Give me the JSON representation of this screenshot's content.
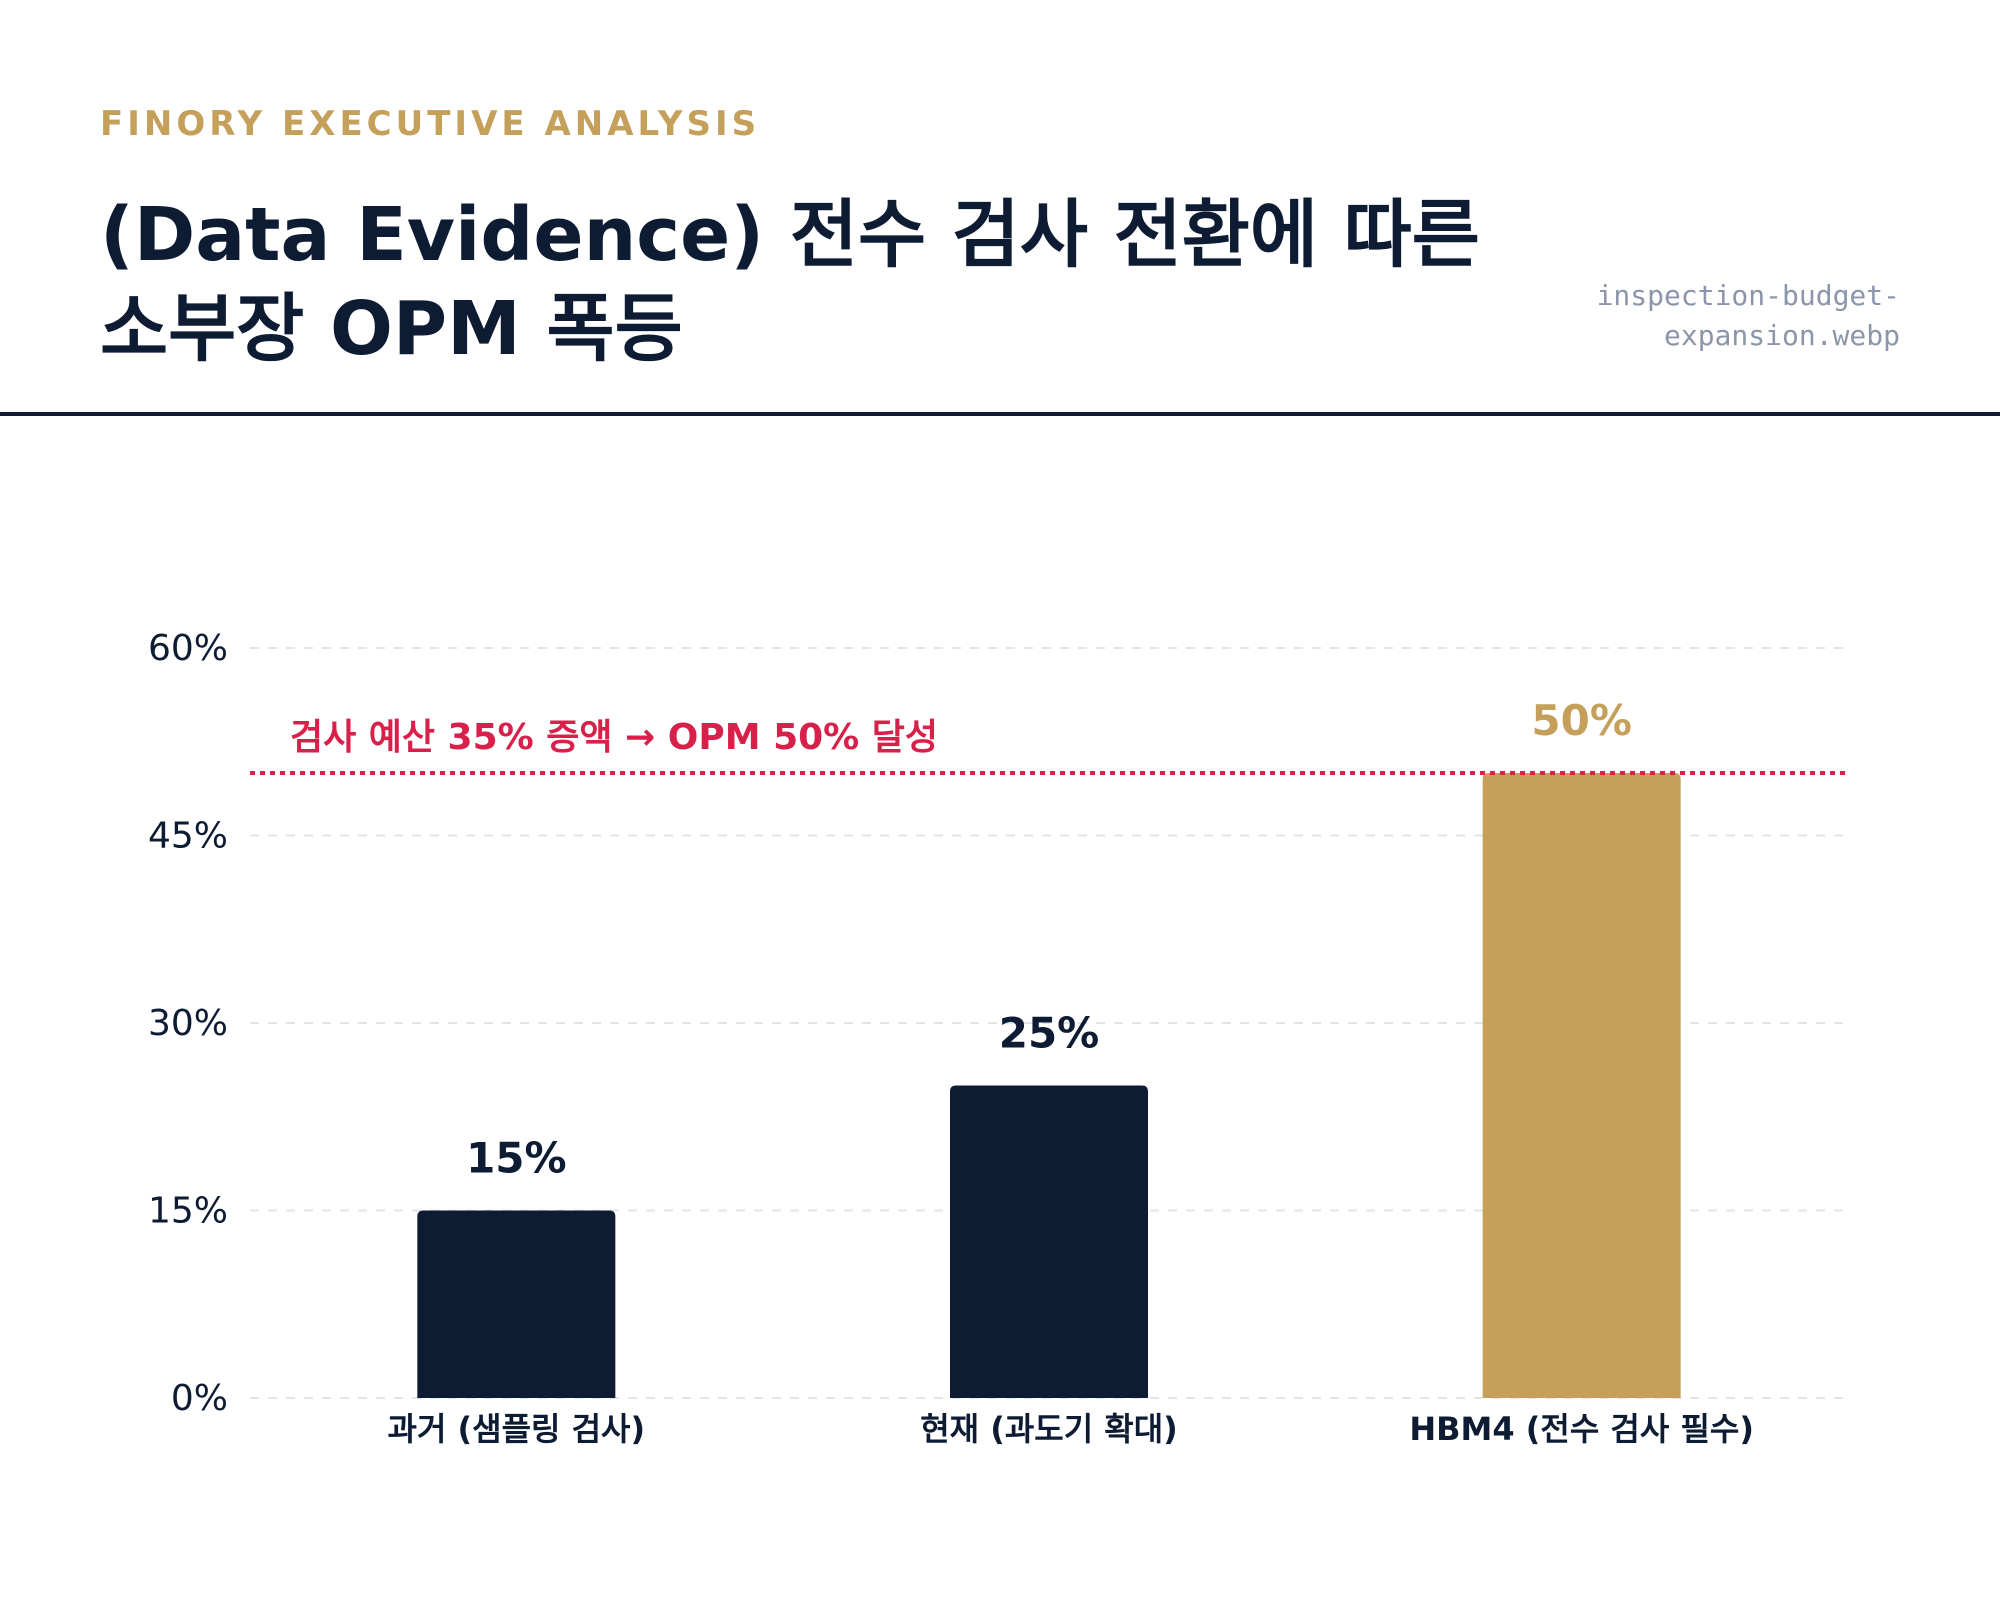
{
  "header": {
    "kicker": "FINORY EXECUTIVE ANALYSIS",
    "title": "(Data Evidence) 전수 검사 전환에 따른 소부장 OPM 폭등",
    "filename": "inspection-budget-expansion.webp"
  },
  "colors": {
    "navy": "#0d1b33",
    "gold": "#c4a05a",
    "crimson": "#d8214a",
    "grid": "#e2e4e8"
  },
  "chart_data": {
    "type": "bar",
    "categories": [
      "과거 (샘플링 검사)",
      "현재 (과도기 확대)",
      "HBM4 (전수 검사 필수)"
    ],
    "values": [
      15,
      25,
      50
    ],
    "value_labels": [
      "15%",
      "25%",
      "50%"
    ],
    "bar_colors": [
      "#0d1b33",
      "#0d1b33",
      "#c4a05a"
    ],
    "label_colors": [
      "#0d1b33",
      "#0d1b33",
      "#c4a05a"
    ],
    "ylim": [
      0,
      60
    ],
    "yticks": [
      0,
      15,
      30,
      45,
      60
    ],
    "ytick_labels": [
      "0%",
      "15%",
      "30%",
      "45%",
      "60%"
    ],
    "grid": true,
    "grid_style": "dashed",
    "reference_line": {
      "value": 50,
      "label": "검사 예산 35% 증액 → OPM 50% 달성",
      "style": "dotted",
      "color": "#d8214a"
    }
  }
}
